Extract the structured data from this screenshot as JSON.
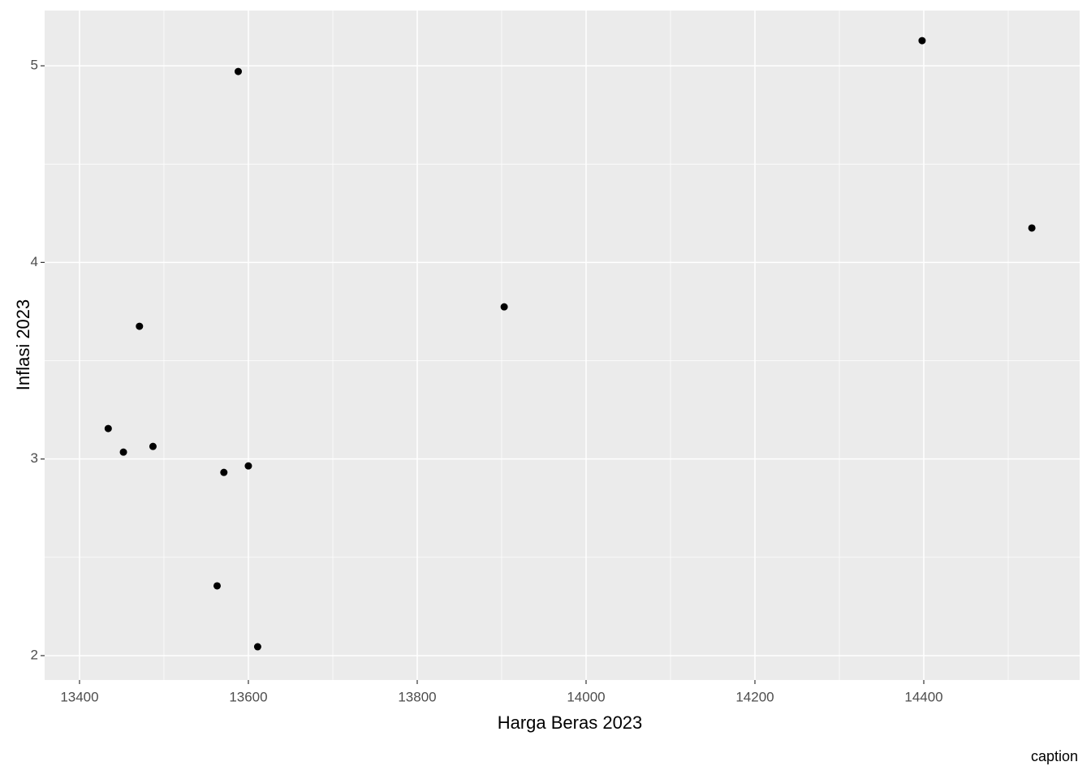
{
  "chart_data": {
    "type": "scatter",
    "x_label": "Harga Beras 2023",
    "y_label": "Inflasi 2023",
    "caption": "caption",
    "x": [
      13434,
      13452,
      13471,
      13487,
      13563,
      13571,
      13588,
      13600,
      13611,
      13903,
      14398,
      14528
    ],
    "values": [
      3.155,
      3.035,
      3.675,
      3.064,
      2.355,
      2.932,
      4.971,
      2.965,
      2.045,
      3.774,
      5.128,
      4.175
    ],
    "color": "#000000",
    "xlim": [
      13358.7,
      14584.6
    ],
    "ylim": [
      1.876,
      5.281
    ],
    "xticks": [
      13400,
      13600,
      13800,
      14000,
      14200,
      14400
    ],
    "yticks": [
      2,
      3,
      4,
      5
    ],
    "grid": true
  }
}
